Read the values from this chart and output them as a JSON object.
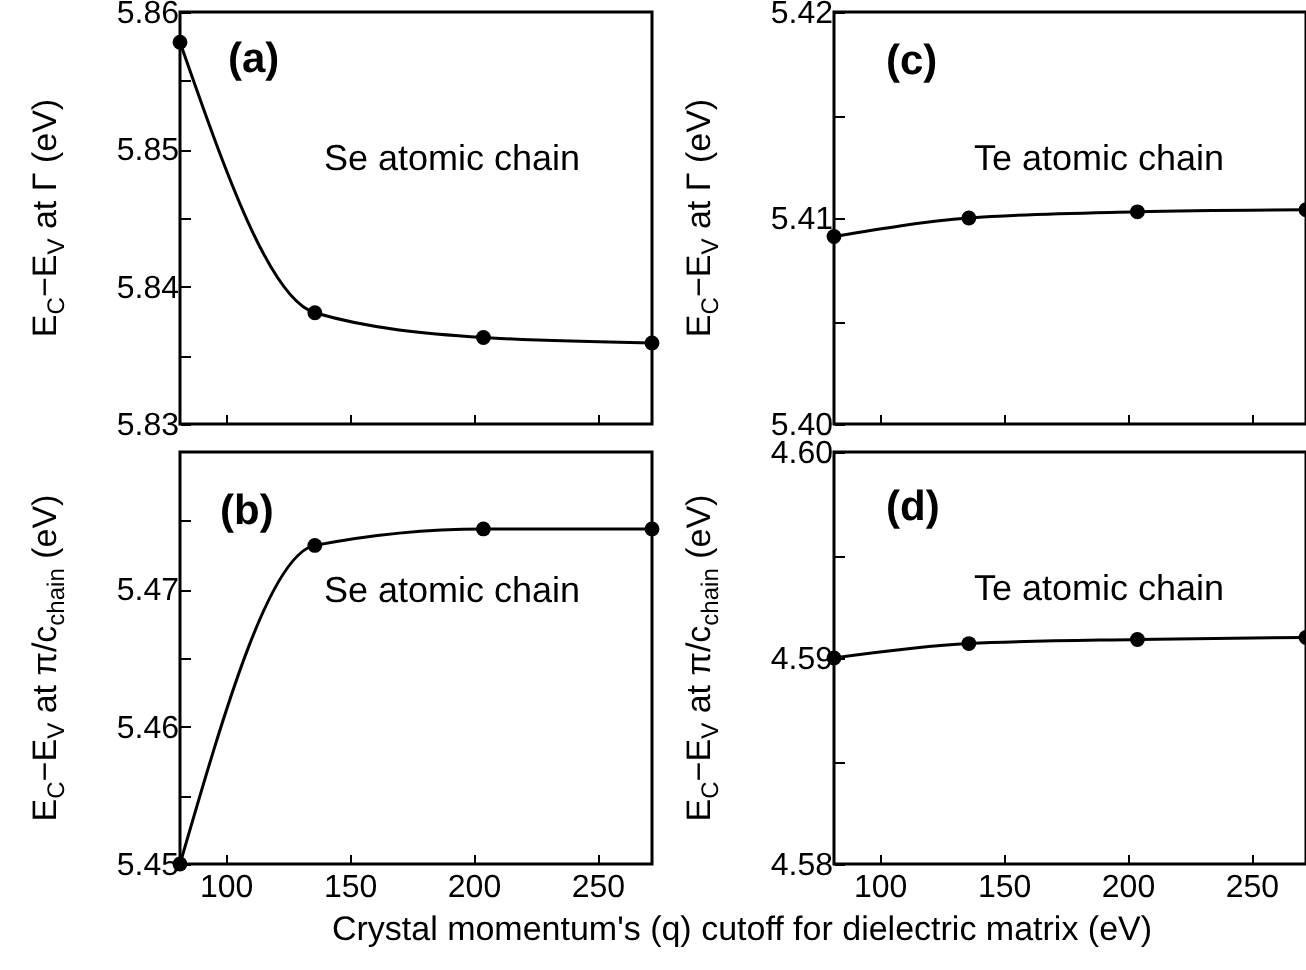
{
  "chart_data": [
    {
      "type": "line",
      "ylabel": "E$_{C}$−E$_{V}$ at Γ (eV)",
      "annotations": [
        "(a)",
        "Se atomic chain"
      ],
      "x": [
        81.6,
        136,
        204,
        272
      ],
      "xlim": [
        81.6,
        272
      ],
      "xticks": [
        100,
        150,
        200,
        250
      ],
      "ylim": [
        5.83,
        5.86
      ],
      "yticks": [
        5.83,
        {
          "value": 5.835,
          "label": null
        },
        5.84,
        {
          "value": 5.845,
          "label": null
        },
        5.85,
        {
          "value": 5.855,
          "label": null
        },
        5.86
      ],
      "tick_labels": "y",
      "marker": "circle",
      "series": [
        {
          "color": "#000000",
          "values": [
            5.8578,
            5.8381,
            5.8363,
            5.8359
          ]
        }
      ]
    },
    {
      "type": "line",
      "ylabel": "E$_{C}$−E$_{V}$ at π/c$_{chain}$ (eV)",
      "xlabel": "Crystal momentum's (q) cutoff for dielectric matrix (eV)",
      "annotations": [
        "(b)",
        "Se atomic chain"
      ],
      "x": [
        81.6,
        136,
        204,
        272
      ],
      "xlim": [
        81.6,
        272
      ],
      "xticks": [
        100,
        150,
        200,
        250
      ],
      "ylim": [
        5.45,
        5.48
      ],
      "yticks": [
        5.45,
        {
          "value": 5.455,
          "label": null
        },
        5.46,
        {
          "value": 5.465,
          "label": null
        },
        5.47,
        {
          "value": 5.475,
          "label": null
        }
      ],
      "marker": "circle",
      "series": [
        {
          "color": "#000000",
          "values": [
            5.45,
            5.4732,
            5.4744,
            5.4744
          ]
        }
      ]
    },
    {
      "type": "line",
      "ylabel": "E$_{C}$−E$_{V}$ at Γ (eV)",
      "annotations": [
        "(c)",
        "Te atomic chain"
      ],
      "x": [
        81.6,
        136,
        204,
        272
      ],
      "xlim": [
        81.6,
        272
      ],
      "xticks": [
        100,
        150,
        200,
        250
      ],
      "ylim": [
        5.4,
        5.42
      ],
      "yticks": [
        {
          "value": 5.4,
          "label": "5.40"
        },
        {
          "value": 5.405,
          "label": null
        },
        5.41,
        {
          "value": 5.415,
          "label": null
        },
        5.42
      ],
      "tick_labels": "y",
      "marker": "circle",
      "series": [
        {
          "color": "#000000",
          "values": [
            5.4091,
            5.41,
            5.4103,
            5.4104
          ]
        }
      ]
    },
    {
      "type": "line",
      "ylabel": "E$_{C}$−E$_{V}$ at π/c$_{chain}$ (eV)",
      "annotations": [
        "(d)",
        "Te atomic chain"
      ],
      "x": [
        81.6,
        136,
        204,
        272
      ],
      "xlim": [
        81.6,
        272
      ],
      "xticks": [
        100,
        150,
        200,
        250
      ],
      "ylim": [
        4.58,
        4.6
      ],
      "yticks": [
        4.58,
        {
          "value": 4.585,
          "label": null
        },
        4.59,
        {
          "value": 4.595,
          "label": null
        },
        {
          "value": 4.6,
          "label": "4.60"
        }
      ],
      "marker": "circle",
      "series": [
        {
          "color": "#000000",
          "values": [
            4.59,
            4.5907,
            4.5909,
            4.591
          ]
        }
      ]
    }
  ]
}
